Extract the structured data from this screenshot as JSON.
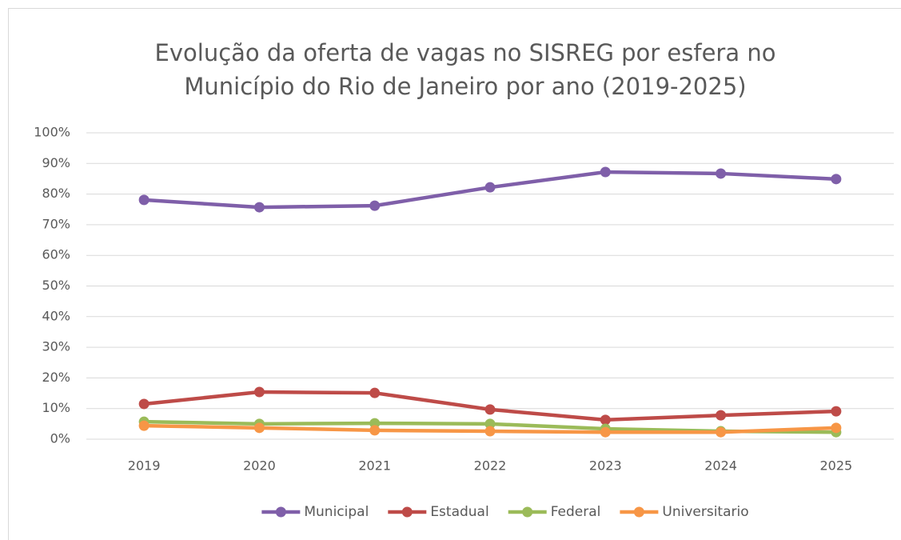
{
  "chart_data": {
    "type": "line",
    "title": [
      "Evolução da oferta de vagas no SISREG por esfera no",
      "Município do Rio de Janeiro por ano (2019-2025)"
    ],
    "categories": [
      "2019",
      "2020",
      "2021",
      "2022",
      "2023",
      "2024",
      "2025"
    ],
    "series": [
      {
        "name": "Municipal",
        "color": "#7f5fa9",
        "values": [
          78.1,
          75.7,
          76.2,
          82.2,
          87.2,
          86.7,
          84.9
        ]
      },
      {
        "name": "Estadual",
        "color": "#be4b48",
        "values": [
          11.5,
          15.4,
          15.1,
          9.7,
          6.3,
          7.8,
          9.1
        ]
      },
      {
        "name": "Federal",
        "color": "#9bbb59",
        "values": [
          5.7,
          5.0,
          5.2,
          5.0,
          3.4,
          2.6,
          2.3
        ]
      },
      {
        "name": "Universitario",
        "color": "#f79646",
        "values": [
          4.4,
          3.7,
          2.9,
          2.6,
          2.3,
          2.3,
          3.7
        ]
      }
    ],
    "ylim": [
      0,
      100
    ],
    "yticks": [
      {
        "value": 0,
        "label": "0%"
      },
      {
        "value": 10,
        "label": "10%"
      },
      {
        "value": 20,
        "label": "20%"
      },
      {
        "value": 30,
        "label": "30%"
      },
      {
        "value": 40,
        "label": "40%"
      },
      {
        "value": 50,
        "label": "50%"
      },
      {
        "value": 60,
        "label": "60%"
      },
      {
        "value": 70,
        "label": "70%"
      },
      {
        "value": 80,
        "label": "80%"
      },
      {
        "value": 90,
        "label": "90%"
      },
      {
        "value": 100,
        "label": "100%"
      }
    ],
    "grid": true,
    "legend": "bottom"
  }
}
